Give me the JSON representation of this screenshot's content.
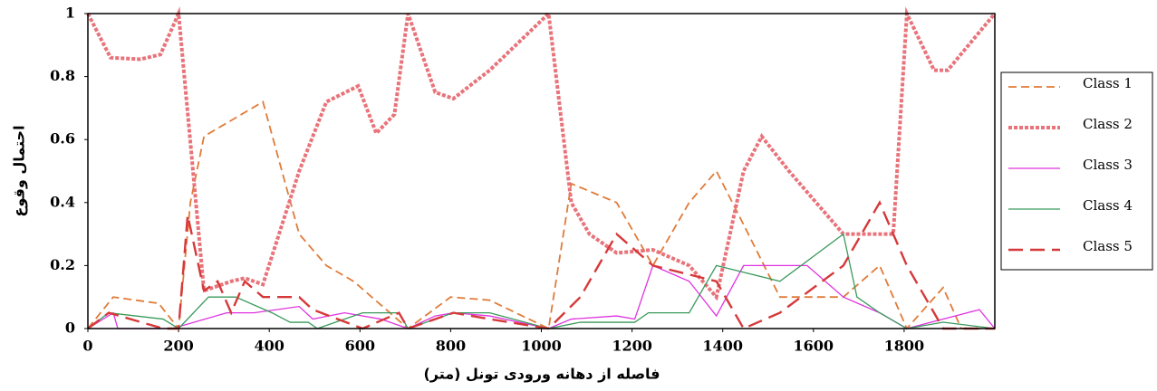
{
  "chart_data": {
    "type": "line",
    "xlabel": "فاصله از دهانه ورودی تونل (متر)",
    "ylabel": "احتمال وقوع",
    "xlim": [
      0,
      2000
    ],
    "xticks": [
      0,
      200,
      400,
      600,
      800,
      1000,
      1200,
      1400,
      1600,
      1800
    ],
    "ylim": [
      0,
      1
    ],
    "yticks": [
      0,
      0.2,
      0.4,
      0.6,
      0.8,
      1
    ],
    "legend": "right",
    "series": [
      {
        "name": "Class 1",
        "color": "#e07b39",
        "dash": "dashed",
        "x": [
          0,
          56,
          156,
          200,
          226,
          256,
          386,
          466,
          526,
          586,
          666,
          706,
          800,
          886,
          1016,
          1066,
          1166,
          1246,
          1326,
          1386,
          1446,
          1526,
          1666,
          1746,
          1806,
          1886,
          1926,
          2000
        ],
        "values": [
          0,
          0.1,
          0.08,
          0,
          0.4,
          0.61,
          0.72,
          0.3,
          0.2,
          0.15,
          0.05,
          0,
          0.1,
          0.09,
          0,
          0.46,
          0.4,
          0.2,
          0.4,
          0.5,
          0.33,
          0.1,
          0.1,
          0.2,
          0,
          0.13,
          0,
          0
        ]
      },
      {
        "name": "Class 2",
        "color": "#e8737a",
        "dash": "dotted",
        "x": [
          0,
          50,
          116,
          160,
          200,
          256,
          316,
          346,
          386,
          466,
          526,
          596,
          636,
          676,
          706,
          766,
          806,
          886,
          1016,
          1066,
          1106,
          1166,
          1246,
          1326,
          1386,
          1446,
          1486,
          1546,
          1606,
          1666,
          1776,
          1806,
          1866,
          1896,
          2000
        ],
        "values": [
          1,
          0.86,
          0.855,
          0.87,
          1,
          0.12,
          0.15,
          0.16,
          0.14,
          0.5,
          0.72,
          0.77,
          0.62,
          0.68,
          1,
          0.75,
          0.73,
          0.82,
          1,
          0.4,
          0.3,
          0.24,
          0.25,
          0.2,
          0.1,
          0.5,
          0.61,
          0.5,
          0.4,
          0.3,
          0.3,
          1,
          0.82,
          0.82,
          1
        ]
      },
      {
        "name": "Class 3",
        "color": "#e033e0",
        "dash": "solid",
        "x": [
          0,
          56,
          66,
          186,
          306,
          366,
          466,
          496,
          566,
          646,
          706,
          766,
          806,
          886,
          1016,
          1066,
          1166,
          1206,
          1246,
          1326,
          1386,
          1446,
          1586,
          1666,
          1746,
          1806,
          1966,
          2000
        ],
        "values": [
          0,
          0.05,
          0,
          0,
          0.05,
          0.05,
          0.07,
          0.03,
          0.05,
          0.03,
          0,
          0.04,
          0.05,
          0.04,
          0,
          0.03,
          0.04,
          0.03,
          0.2,
          0.15,
          0.04,
          0.2,
          0.2,
          0.1,
          0.05,
          0,
          0.06,
          0
        ]
      },
      {
        "name": "Class 4",
        "color": "#3a9a5c",
        "dash": "solid",
        "x": [
          0,
          46,
          166,
          200,
          266,
          326,
          406,
          446,
          486,
          506,
          606,
          686,
          706,
          806,
          886,
          1016,
          1086,
          1206,
          1236,
          1326,
          1386,
          1526,
          1666,
          1696,
          1746,
          1806,
          1886,
          2000
        ],
        "values": [
          0,
          0.05,
          0.03,
          0,
          0.1,
          0.1,
          0.05,
          0.02,
          0.02,
          0,
          0.05,
          0.05,
          0,
          0.05,
          0.05,
          0,
          0.02,
          0.02,
          0.05,
          0.05,
          0.2,
          0.15,
          0.3,
          0.1,
          0.05,
          0,
          0.02,
          0
        ]
      },
      {
        "name": "Class 5",
        "color": "#d6393a",
        "dash": "longdash",
        "x": [
          0,
          46,
          166,
          200,
          220,
          256,
          286,
          316,
          346,
          386,
          466,
          496,
          606,
          686,
          706,
          766,
          806,
          886,
          1016,
          1086,
          1166,
          1246,
          1386,
          1446,
          1526,
          1666,
          1746,
          1806,
          1886,
          2000
        ],
        "values": [
          0,
          0.05,
          0,
          0,
          0.36,
          0.12,
          0.15,
          0.05,
          0.15,
          0.1,
          0.1,
          0.06,
          0,
          0.05,
          0,
          0.03,
          0.05,
          0.03,
          0,
          0.1,
          0.3,
          0.2,
          0.15,
          0,
          0.05,
          0.2,
          0.4,
          0.2,
          0,
          0
        ]
      }
    ]
  }
}
